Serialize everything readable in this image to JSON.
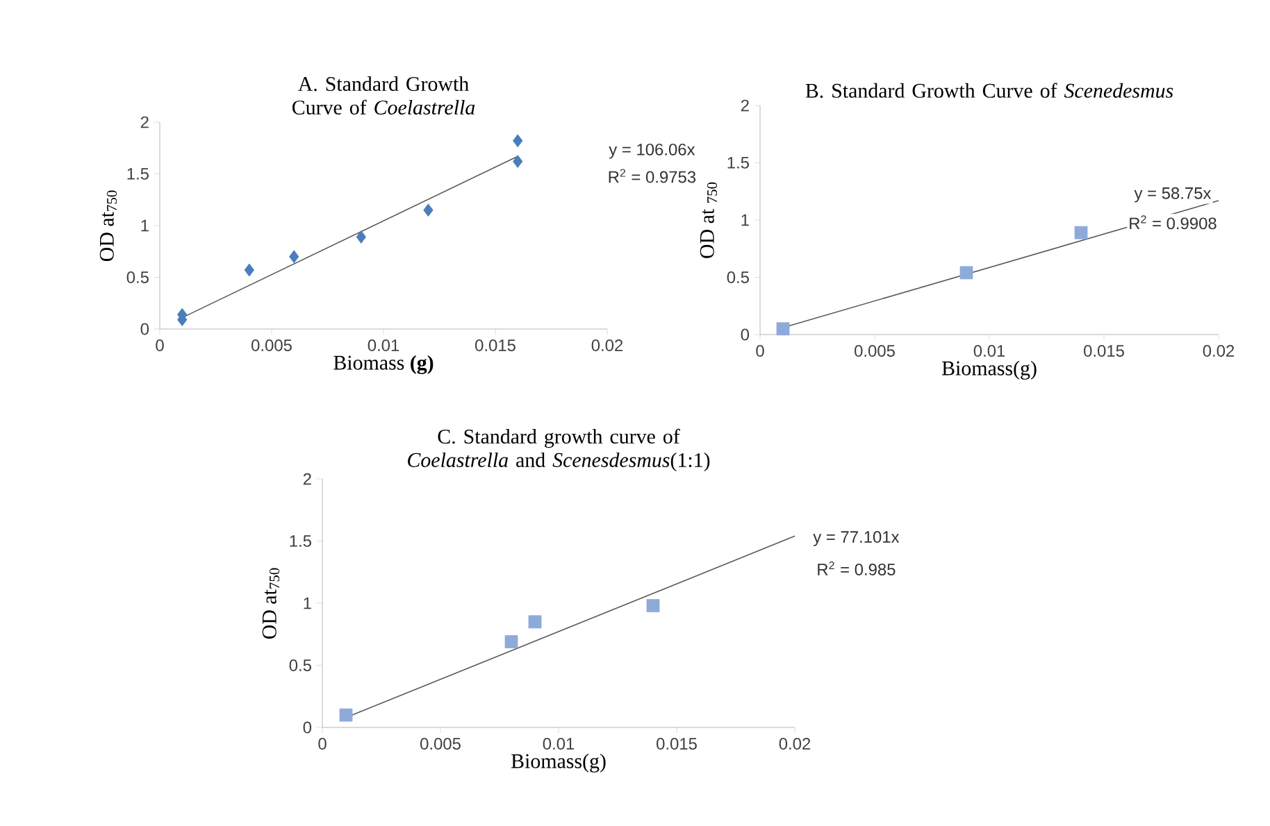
{
  "chart_data": [
    {
      "type": "scatter",
      "title": "A. Standard Growth Curve of *Coelastrella*",
      "xlabel": "Biomass **(g)**",
      "ylabel": "OD at$_{750}$",
      "xlim": [
        0,
        0.02
      ],
      "ylim": [
        0,
        2
      ],
      "xticks": [
        0,
        0.005,
        0.01,
        0.015,
        0.02
      ],
      "yticks": [
        0,
        0.5,
        1,
        1.5,
        2
      ],
      "marker": "diamond",
      "series": [
        {
          "color": "#4a7ebb",
          "x": [
            0.001,
            0.001,
            0.004,
            0.006,
            0.009,
            0.012,
            0.016,
            0.016
          ],
          "values": [
            0.14,
            0.09,
            0.57,
            0.7,
            0.89,
            1.15,
            1.82,
            1.62
          ]
        },
        {
          "type": "line",
          "color": "#595959",
          "marker": "none",
          "x": [
            0.001,
            0.016
          ],
          "values": [
            0.11,
            1.67
          ]
        }
      ],
      "annotations": [
        "y = 106.06x",
        "R$^{2}$ = 0.9753"
      ]
    },
    {
      "type": "scatter",
      "title": "B. Standard Growth Curve of *Scenedesmus*",
      "xlabel": "Biomass(g)",
      "ylabel": "OD at $_{750}$",
      "xlim": [
        0,
        0.02
      ],
      "ylim": [
        0,
        2
      ],
      "xticks": [
        0,
        0.005,
        0.01,
        0.015,
        0.02
      ],
      "yticks": [
        0,
        0.5,
        1,
        1.5,
        2
      ],
      "marker": "square",
      "series": [
        {
          "color": "#8eaadb",
          "x": [
            0.001,
            0.009,
            0.014
          ],
          "values": [
            0.05,
            0.54,
            0.89
          ]
        },
        {
          "type": "line",
          "color": "#595959",
          "marker": "none",
          "x": [
            0.001,
            0.02
          ],
          "values": [
            0.06,
            1.17
          ]
        }
      ],
      "annotations": [
        "y = 58.75x",
        "R$^{2}$ = 0.9908"
      ]
    },
    {
      "type": "scatter",
      "title": "C. Standard growth curve of *Coelastrella* and *Scenesdesmus*(1:1)",
      "xlabel": "Biomass(g)",
      "ylabel": "OD at$_{750}$",
      "xlim": [
        0,
        0.02
      ],
      "ylim": [
        0,
        2
      ],
      "xticks": [
        0,
        0.005,
        0.01,
        0.015,
        0.02
      ],
      "yticks": [
        0,
        0.5,
        1,
        1.5,
        2
      ],
      "marker": "square",
      "series": [
        {
          "color": "#8eaadb",
          "x": [
            0.001,
            0.008,
            0.009,
            0.014
          ],
          "values": [
            0.1,
            0.69,
            0.85,
            0.98
          ]
        },
        {
          "type": "line",
          "color": "#595959",
          "marker": "none",
          "x": [
            0.001,
            0.02
          ],
          "values": [
            0.08,
            1.54
          ]
        }
      ],
      "annotations": [
        "y = 77.101x",
        "R$^{2}$ = 0.985"
      ]
    }
  ]
}
